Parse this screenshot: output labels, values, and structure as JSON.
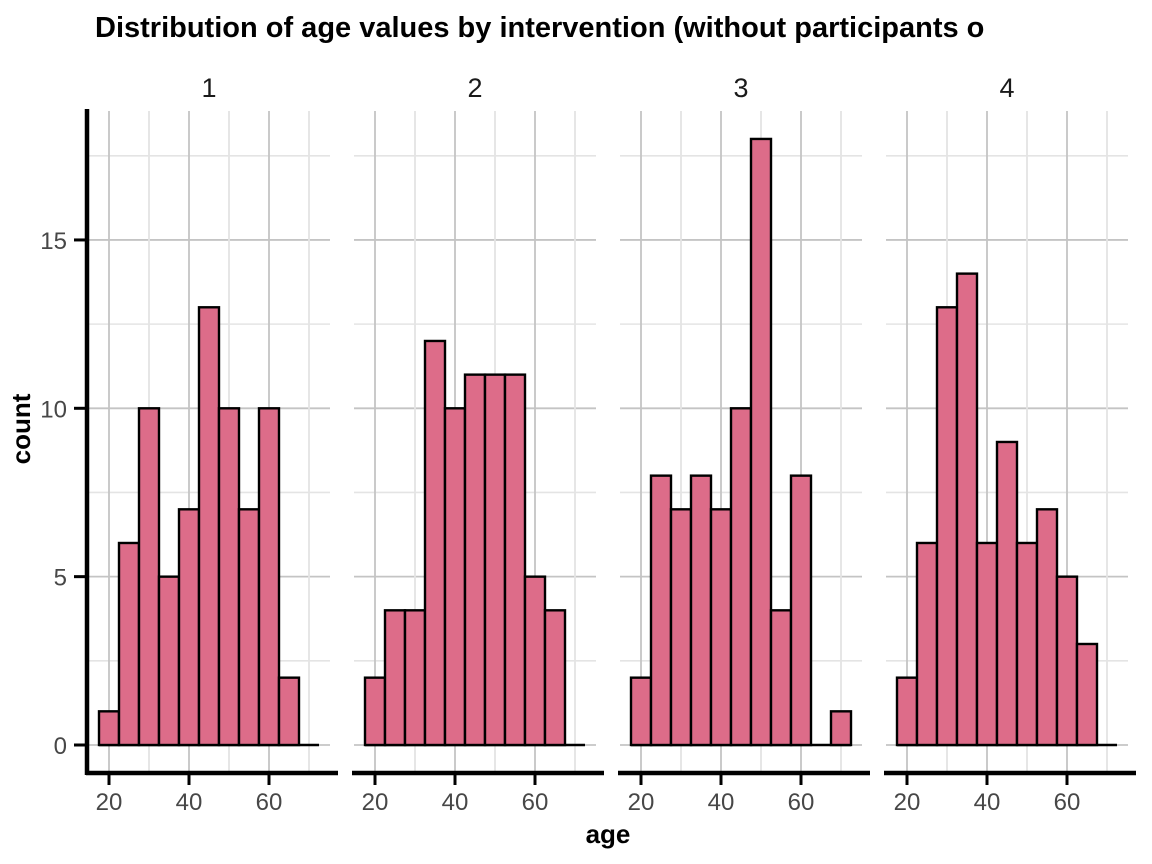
{
  "chart_data": {
    "type": "bar",
    "subtype": "faceted-histogram",
    "title": "Distribution of age values by intervention (without participants o",
    "xlabel": "age",
    "ylabel": "count",
    "x_ticks": [
      20,
      40,
      60
    ],
    "y_ticks": [
      0,
      5,
      10,
      15
    ],
    "x_gridlines_major": [
      20,
      40,
      60
    ],
    "x_gridlines_minor": [
      30,
      50,
      70
    ],
    "y_gridlines_major": [
      0,
      5,
      10,
      15
    ],
    "y_gridlines_minor": [
      2.5,
      7.5,
      12.5,
      17.5
    ],
    "bin_start": 17.5,
    "bin_width": 5,
    "xlim": [
      14.75,
      75.25
    ],
    "ylim": [
      -0.95,
      18.9
    ],
    "grid": true,
    "legend": "none",
    "colors": {
      "bar_fill": "#DD6C89",
      "bar_stroke": "#000000",
      "axis_line": "#000000",
      "tick_label": "#474747",
      "grid_major": "#C4C4C4",
      "grid_minor": "#E4E4E4",
      "background": "#FFFFFF"
    },
    "facets": [
      {
        "label": "1",
        "counts": [
          1,
          6,
          10,
          5,
          7,
          13,
          10,
          7,
          10,
          2,
          0
        ]
      },
      {
        "label": "2",
        "counts": [
          2,
          4,
          4,
          12,
          10,
          11,
          11,
          11,
          5,
          4,
          0
        ]
      },
      {
        "label": "3",
        "counts": [
          2,
          8,
          7,
          8,
          7,
          10,
          18,
          4,
          8,
          0,
          1
        ]
      },
      {
        "label": "4",
        "counts": [
          2,
          6,
          13,
          14,
          6,
          9,
          6,
          7,
          5,
          3,
          0
        ]
      }
    ]
  }
}
